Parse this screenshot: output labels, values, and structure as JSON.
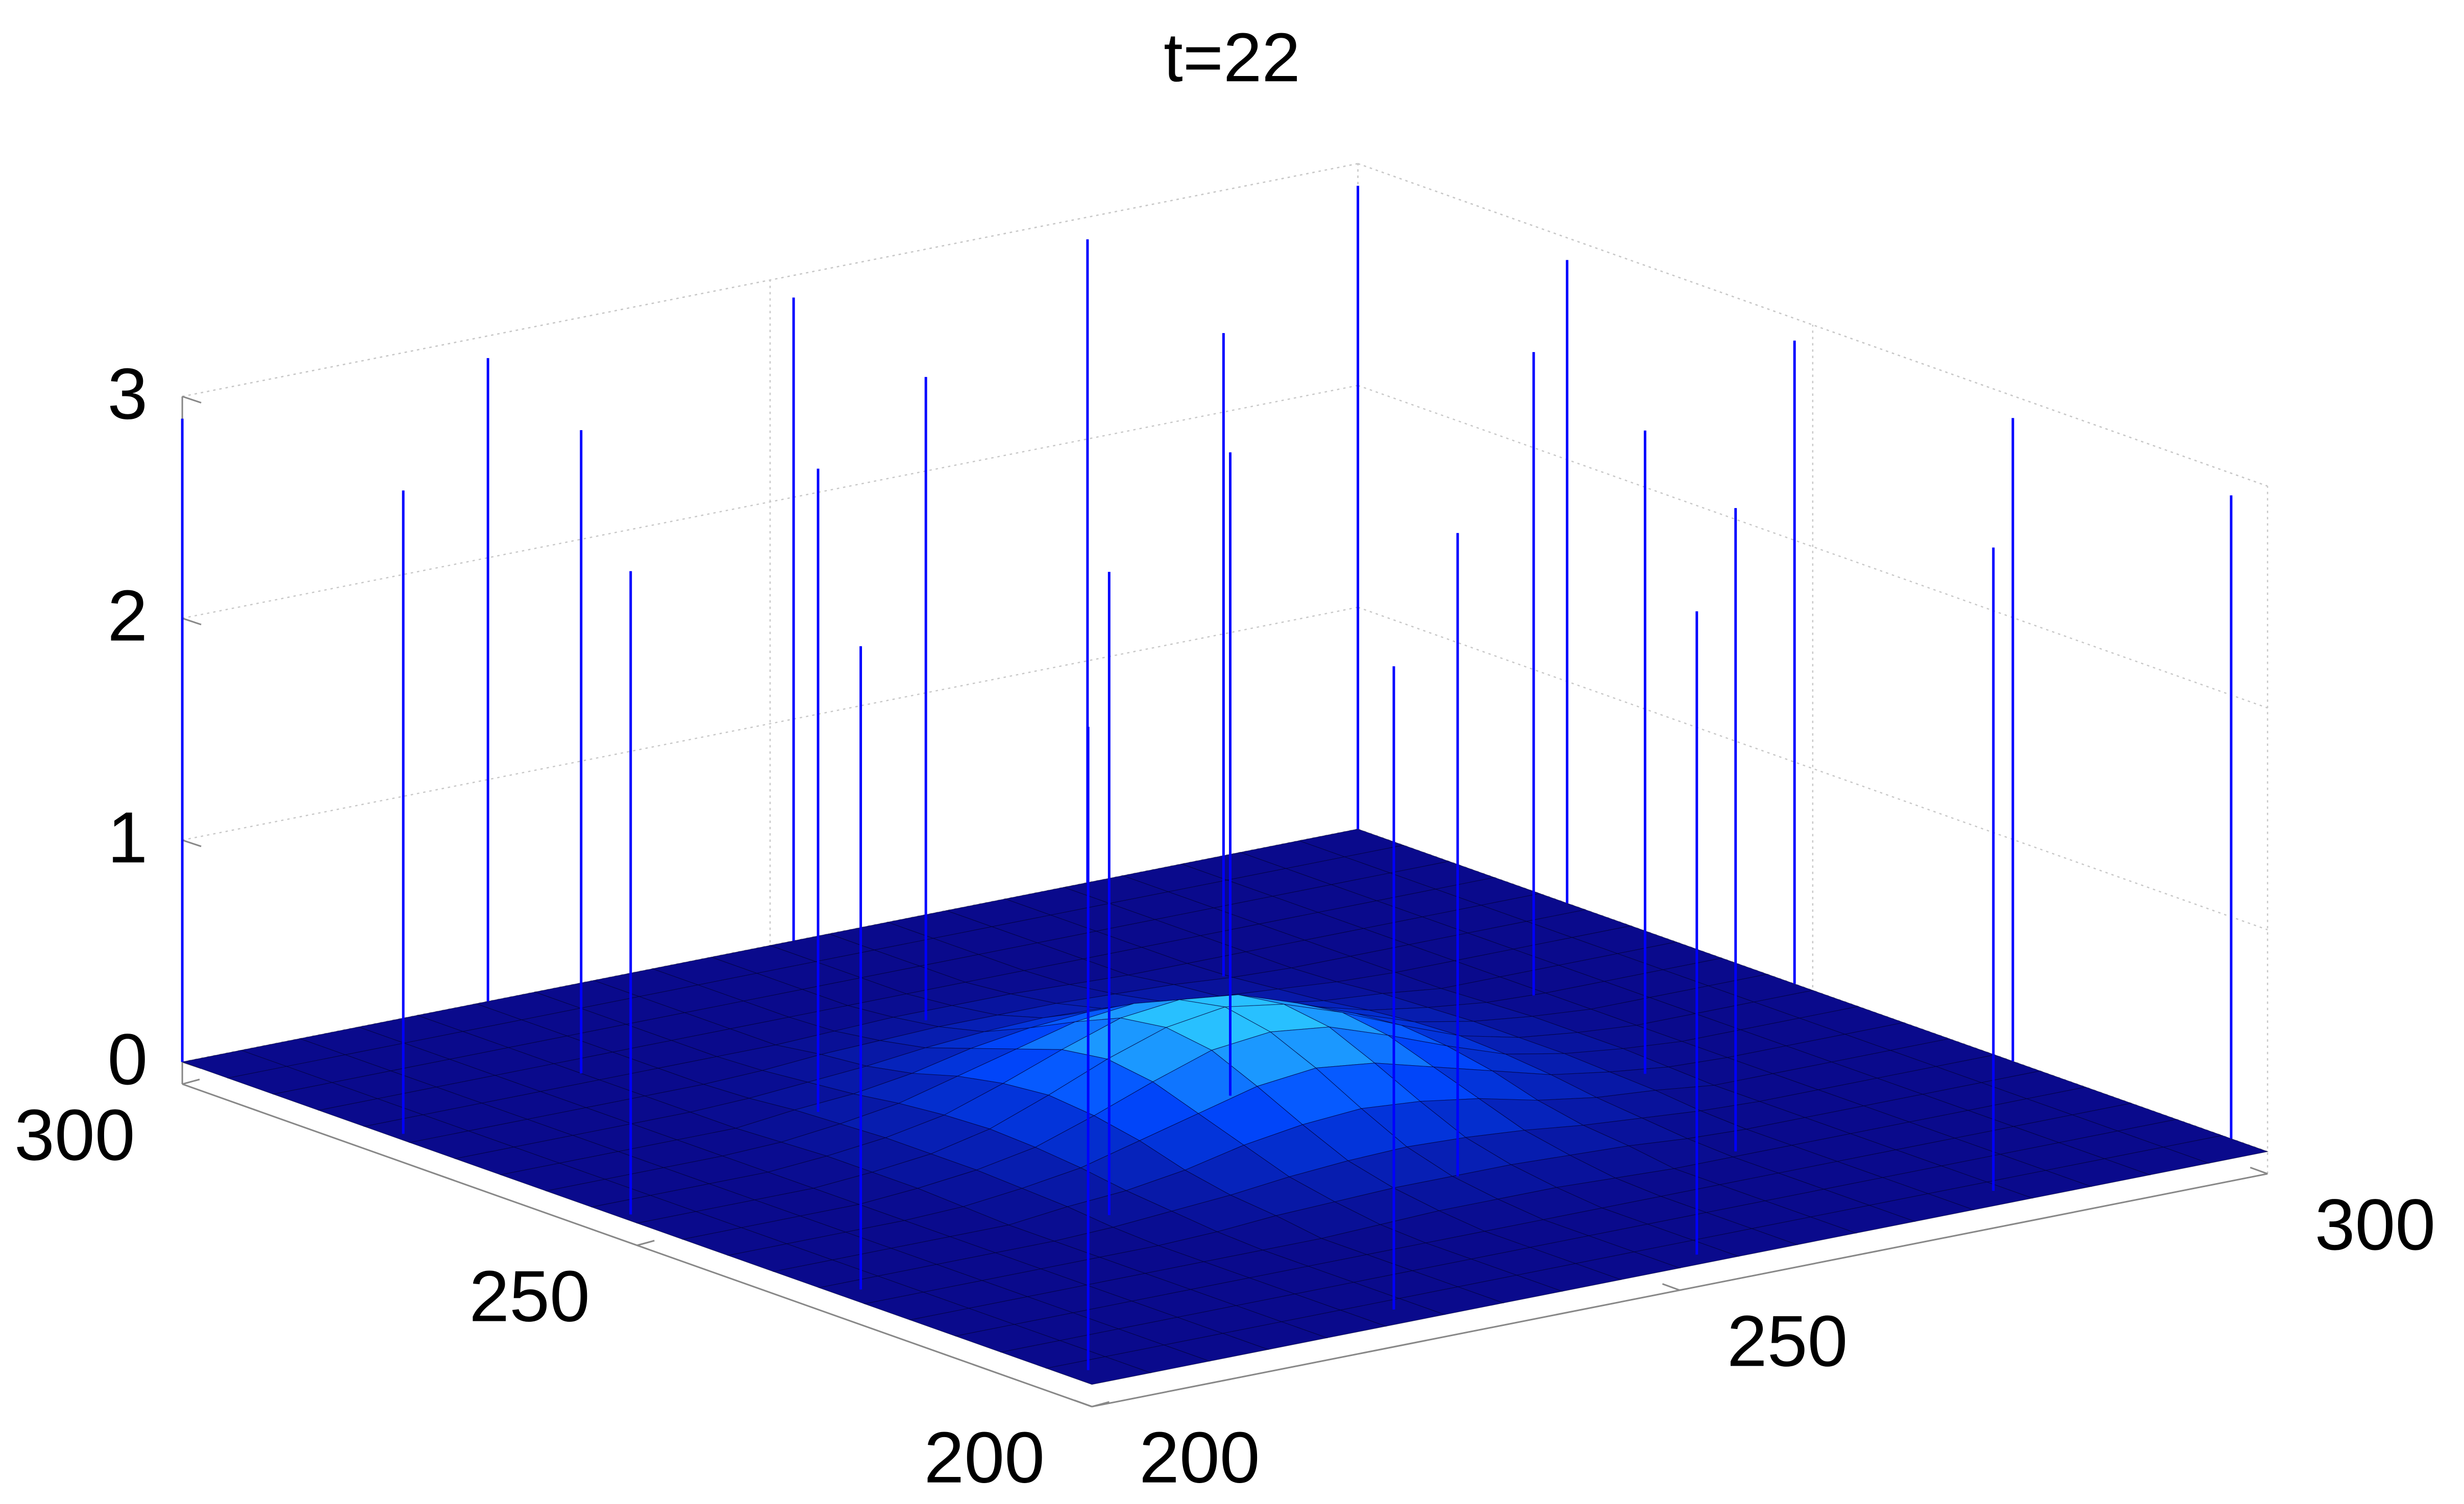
{
  "chart_data": {
    "type": "surface",
    "title": "t=22",
    "xlim": [
      200,
      300
    ],
    "ylim": [
      200,
      300
    ],
    "zlim": [
      -0.1,
      3
    ],
    "xticks": [
      200,
      250,
      300
    ],
    "yticks": [
      200,
      250,
      300
    ],
    "zticks": [
      0,
      1,
      2,
      3
    ],
    "grid": true,
    "colormap": [
      "#0a0a8c",
      "#0048ff",
      "#30d8ff"
    ],
    "surface": {
      "x": [
        200,
        205,
        210,
        215,
        220,
        225,
        230,
        235,
        240,
        245,
        250,
        255,
        260,
        265,
        270,
        275,
        280,
        285,
        290,
        295,
        300
      ],
      "y": [
        200,
        205,
        210,
        215,
        220,
        225,
        230,
        235,
        240,
        245,
        250,
        255,
        260,
        265,
        270,
        275,
        280,
        285,
        290,
        295,
        300
      ],
      "z": [
        [
          0,
          0,
          0,
          0,
          0,
          0,
          0,
          0,
          0,
          0,
          0,
          0,
          0,
          0,
          0,
          0,
          0,
          0,
          0,
          0,
          0
        ],
        [
          0,
          0,
          0,
          0,
          0,
          0,
          0,
          0,
          0,
          0,
          0,
          0,
          0,
          0,
          0,
          0,
          0,
          0,
          0,
          0,
          0
        ],
        [
          0,
          0,
          0,
          0,
          0,
          0,
          0,
          0,
          0,
          0,
          0,
          0,
          0,
          0,
          0,
          0,
          0,
          0,
          0,
          0,
          0
        ],
        [
          0,
          0,
          0,
          0,
          0,
          0,
          0,
          0,
          0,
          0,
          0,
          0,
          0,
          0,
          0,
          0,
          0,
          0,
          0,
          0,
          0
        ],
        [
          0,
          0,
          0,
          0,
          0,
          0,
          0,
          0,
          0.01,
          0.02,
          0.02,
          0.02,
          0.01,
          0,
          0,
          0,
          0,
          0,
          0,
          0,
          0
        ],
        [
          0,
          0,
          0,
          0,
          0,
          0,
          0.01,
          0.03,
          0.04,
          0.05,
          0.05,
          0.05,
          0.04,
          0.03,
          0.01,
          0,
          0,
          0,
          0,
          0,
          0
        ],
        [
          0,
          0,
          0,
          0,
          0,
          0.01,
          0.03,
          0.05,
          0.08,
          0.1,
          0.11,
          0.1,
          0.08,
          0.05,
          0.03,
          0.01,
          0,
          0,
          0,
          0,
          0
        ],
        [
          0,
          0,
          0,
          0,
          0,
          0.03,
          0.05,
          0.09,
          0.15,
          0.19,
          0.21,
          0.19,
          0.15,
          0.09,
          0.05,
          0.03,
          0,
          0,
          0,
          0,
          0
        ],
        [
          0,
          0,
          0,
          0,
          0.01,
          0.04,
          0.08,
          0.15,
          0.22,
          0.29,
          0.32,
          0.29,
          0.22,
          0.15,
          0.08,
          0.04,
          0.01,
          0,
          0,
          0,
          0
        ],
        [
          0,
          0,
          0,
          0,
          0.02,
          0.05,
          0.1,
          0.19,
          0.29,
          0.38,
          0.41,
          0.38,
          0.29,
          0.19,
          0.1,
          0.05,
          0.02,
          0,
          0,
          0,
          0
        ],
        [
          0,
          0,
          0,
          0,
          0.02,
          0.05,
          0.11,
          0.21,
          0.32,
          0.41,
          0.45,
          0.41,
          0.32,
          0.21,
          0.11,
          0.05,
          0.02,
          0,
          0,
          0,
          0
        ],
        [
          0,
          0,
          0,
          0,
          0.02,
          0.05,
          0.1,
          0.19,
          0.29,
          0.38,
          0.41,
          0.38,
          0.29,
          0.19,
          0.1,
          0.05,
          0.02,
          0,
          0,
          0,
          0
        ],
        [
          0,
          0,
          0,
          0,
          0.01,
          0.04,
          0.08,
          0.15,
          0.22,
          0.29,
          0.32,
          0.29,
          0.22,
          0.15,
          0.08,
          0.04,
          0.01,
          0,
          0,
          0,
          0
        ],
        [
          0,
          0,
          0,
          0,
          0,
          0.03,
          0.05,
          0.09,
          0.15,
          0.19,
          0.21,
          0.19,
          0.15,
          0.09,
          0.05,
          0.03,
          0,
          0,
          0,
          0,
          0
        ],
        [
          0,
          0,
          0,
          0,
          0,
          0.01,
          0.03,
          0.05,
          0.08,
          0.1,
          0.11,
          0.1,
          0.08,
          0.05,
          0.03,
          0.01,
          0,
          0,
          0,
          0,
          0
        ],
        [
          0,
          0,
          0,
          0,
          0,
          0,
          0.01,
          0.03,
          0.04,
          0.05,
          0.05,
          0.05,
          0.04,
          0.03,
          0.01,
          0,
          0,
          0,
          0,
          0,
          0
        ],
        [
          0,
          0,
          0,
          0,
          0,
          0,
          0,
          0,
          0.01,
          0.02,
          0.02,
          0.02,
          0.01,
          0,
          0,
          0,
          0,
          0,
          0,
          0,
          0
        ],
        [
          0,
          0,
          0,
          0,
          0,
          0,
          0,
          0,
          0,
          0,
          0,
          0,
          0,
          0,
          0,
          0,
          0,
          0,
          0,
          0,
          0
        ],
        [
          0,
          0,
          0,
          0,
          0,
          0,
          0,
          0,
          0,
          0,
          0,
          0,
          0,
          0,
          0,
          0,
          0,
          0,
          0,
          0,
          0
        ],
        [
          0,
          0,
          0,
          0,
          0,
          0,
          0,
          0,
          0,
          0,
          0,
          0,
          0,
          0,
          0,
          0,
          0,
          0,
          0,
          0,
          0
        ],
        [
          0,
          0,
          0,
          0,
          0,
          0,
          0,
          0,
          0,
          0,
          0,
          0,
          0,
          0,
          0,
          0,
          0,
          0,
          0,
          0,
          0
        ]
      ]
    },
    "stems": {
      "color": "#0000ff",
      "x": [
        200,
        201,
        226,
        220,
        201,
        252,
        227,
        202,
        247,
        277,
        202,
        227,
        270,
        252,
        300,
        228,
        252,
        284,
        300,
        278,
        253,
        271,
        300,
        279,
        300,
        300
      ],
      "y": [
        300,
        277,
        300,
        282,
        252,
        300,
        265,
        228,
        279,
        300,
        203,
        233,
        276,
        252,
        300,
        203,
        227,
        260,
        277,
        240,
        202,
        221,
        252,
        203,
        228,
        204
      ],
      "z": [
        2.9,
        2.9,
        2.9,
        2.9,
        2.9,
        2.9,
        2.9,
        2.9,
        2.9,
        2.9,
        2.9,
        2.9,
        2.9,
        2.9,
        2.9,
        2.9,
        2.9,
        2.9,
        2.9,
        2.9,
        2.9,
        2.9,
        2.9,
        2.9,
        2.9,
        2.9
      ]
    }
  }
}
